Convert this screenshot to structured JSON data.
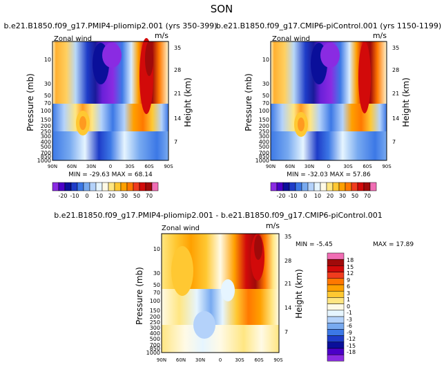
{
  "page_title": "SON",
  "chart_data": [
    {
      "type": "heatmap",
      "id": "p1",
      "title": "b.e21.B1850.f09_g17.PMIP4-pliomip2.001 (yrs 350-399)",
      "variable": "Zonal wind",
      "units": "m/s",
      "ylabel": "Pressure (mb)",
      "ylabel_right": "Height (km)",
      "x_ticks": [
        "90N",
        "60N",
        "30N",
        "0",
        "30S",
        "60S",
        "90S"
      ],
      "y_ticks": [
        "10",
        "30",
        "50",
        "70",
        "100",
        "150",
        "200",
        "250",
        "300",
        "400",
        "500",
        "700",
        "850",
        "1000"
      ],
      "height_ticks": [
        "35",
        "28",
        "21",
        "14",
        "7"
      ],
      "stats": "MIN = -29.63   MAX = 68.14",
      "min": -29.63,
      "max": 68.14,
      "colorbar": {
        "orientation": "horizontal",
        "labels": [
          "-20",
          "-10",
          "0",
          "10",
          "20",
          "30",
          "50",
          "70"
        ],
        "colors": [
          "#8a2be2",
          "#4b00c8",
          "#0a0f9a",
          "#1e3cc8",
          "#3c78e6",
          "#78aaf0",
          "#b4d2fa",
          "#e6f5ff",
          "#fffae6",
          "#ffe682",
          "#ffc832",
          "#ffa000",
          "#ff7800",
          "#f03c1e",
          "#d20a0a",
          "#a00a0a",
          "#f06eb4"
        ]
      }
    },
    {
      "type": "heatmap",
      "id": "p2",
      "title": "b.e21.B1850.f09_g17.CMIP6-piControl.001 (yrs 1150-1199)",
      "variable": "Zonal wind",
      "units": "m/s",
      "ylabel": "Pressure (mb)",
      "ylabel_right": "Height (km)",
      "x_ticks": [
        "90N",
        "60N",
        "30N",
        "0",
        "30S",
        "60S",
        "90S"
      ],
      "y_ticks": [
        "10",
        "30",
        "50",
        "70",
        "100",
        "150",
        "200",
        "250",
        "300",
        "400",
        "500",
        "700",
        "850",
        "1000"
      ],
      "height_ticks": [
        "35",
        "28",
        "21",
        "14",
        "7"
      ],
      "stats": "MIN = -32.03   MAX = 57.86",
      "min": -32.03,
      "max": 57.86,
      "colorbar": {
        "orientation": "horizontal",
        "labels": [
          "-20",
          "-10",
          "0",
          "10",
          "20",
          "30",
          "50",
          "70"
        ],
        "colors": [
          "#8a2be2",
          "#4b00c8",
          "#0a0f9a",
          "#1e3cc8",
          "#3c78e6",
          "#78aaf0",
          "#b4d2fa",
          "#e6f5ff",
          "#fffae6",
          "#ffe682",
          "#ffc832",
          "#ffa000",
          "#ff7800",
          "#f03c1e",
          "#d20a0a",
          "#a00a0a",
          "#f06eb4"
        ]
      }
    },
    {
      "type": "heatmap",
      "id": "p3",
      "title": "b.e21.B1850.f09_g17.PMIP4-pliomip2.001 - b.e21.B1850.f09_g17.CMIP6-piControl.001",
      "variable": "Zonal wind",
      "units": "m/s",
      "ylabel": "Pressure (mb)",
      "ylabel_right": "Height (km)",
      "x_ticks": [
        "90N",
        "60N",
        "30N",
        "0",
        "30S",
        "60S",
        "90S"
      ],
      "y_ticks": [
        "10",
        "30",
        "50",
        "70",
        "100",
        "150",
        "200",
        "250",
        "300",
        "400",
        "500",
        "700",
        "850",
        "1000"
      ],
      "height_ticks": [
        "35",
        "28",
        "21",
        "14",
        "7"
      ],
      "stats_min": "MIN = -5.45",
      "stats_max": "MAX = 17.89",
      "min": -5.45,
      "max": 17.89,
      "colorbar": {
        "orientation": "vertical",
        "labels": [
          "18",
          "15",
          "12",
          "9",
          "6",
          "3",
          "1",
          "0",
          "-1",
          "-3",
          "-6",
          "-9",
          "-12",
          "-15",
          "-18"
        ],
        "colors": [
          "#f06eb4",
          "#a00a0a",
          "#d20a0a",
          "#f03c1e",
          "#ff7800",
          "#ffa000",
          "#ffc832",
          "#ffe682",
          "#fffae6",
          "#e6f5ff",
          "#b4d2fa",
          "#78aaf0",
          "#3c78e6",
          "#1e3cc8",
          "#0a0f9a",
          "#4b00c8",
          "#8a2be2"
        ]
      }
    }
  ]
}
